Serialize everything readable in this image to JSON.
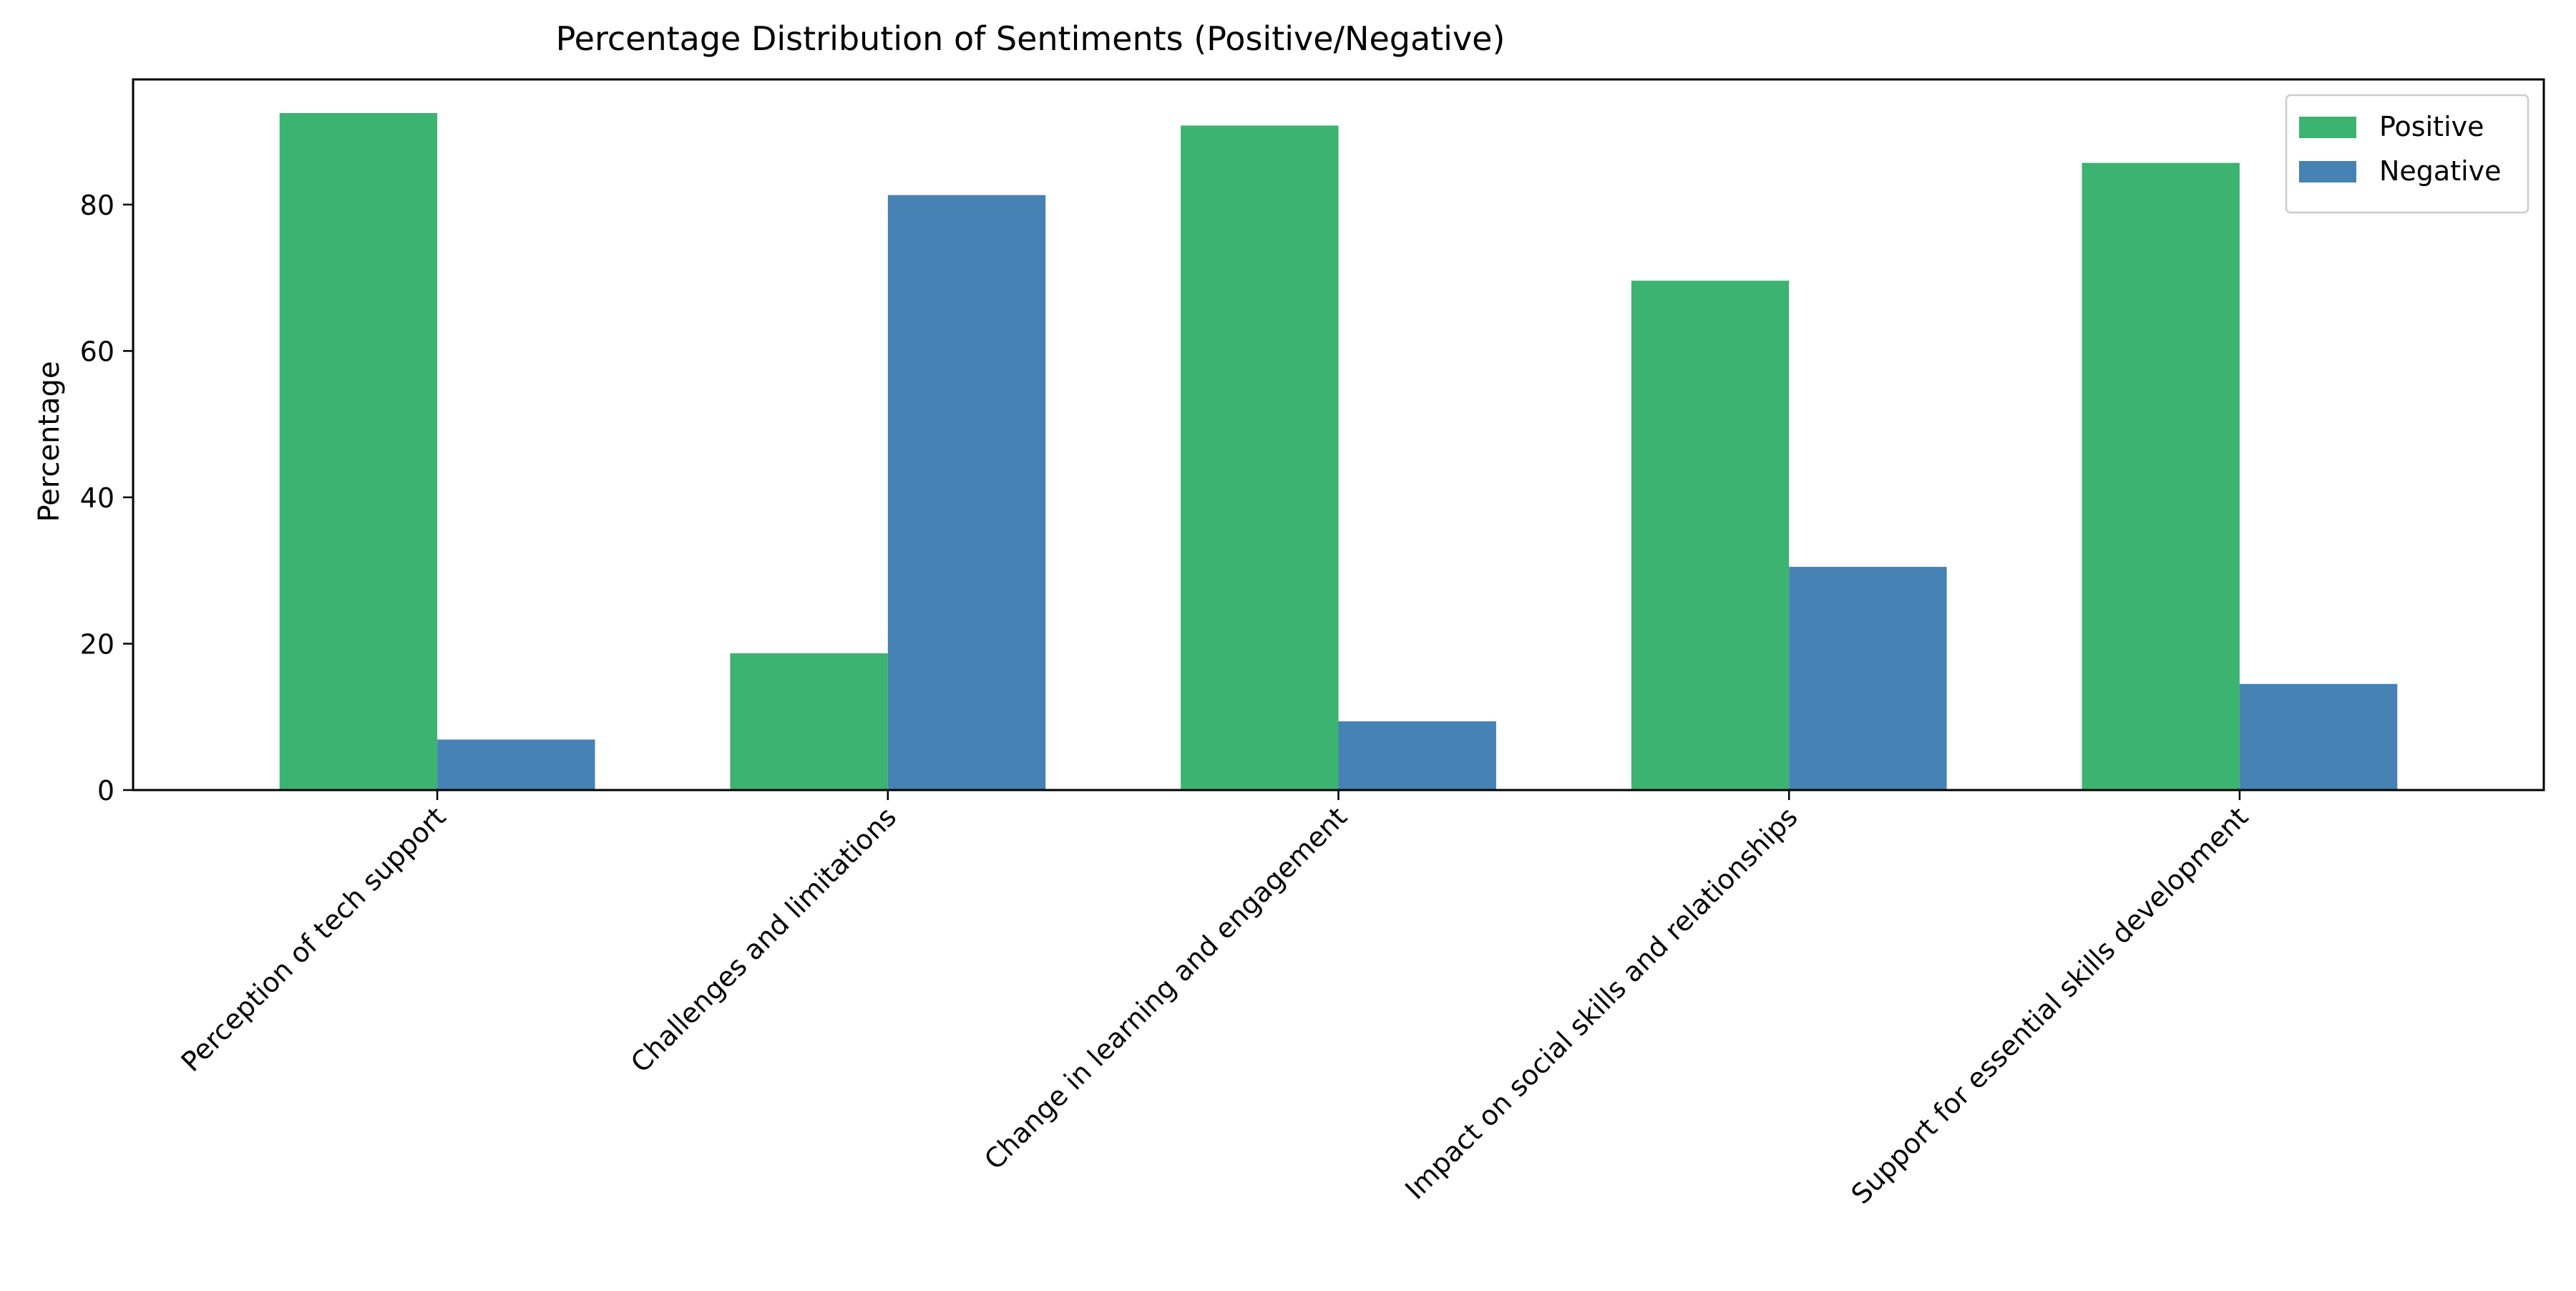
{
  "chart_data": {
    "type": "bar",
    "title": "Percentage Distribution of Sentiments (Positive/Negative)",
    "xlabel": "",
    "ylabel": "Percentage",
    "categories": [
      "Perception of tech support",
      "Challenges and limitations",
      "Change in learning and engagement",
      "Impact on social skills and relationships",
      "Support for essential skills development"
    ],
    "series": [
      {
        "name": "Positive",
        "color": "#3cb371",
        "values": [
          92.5,
          18.7,
          90.8,
          69.6,
          85.7
        ]
      },
      {
        "name": "Negative",
        "color": "#4682b4",
        "values": [
          6.9,
          81.3,
          9.4,
          30.5,
          14.5
        ]
      }
    ],
    "ylim": [
      0,
      97.1
    ],
    "yticks": [
      0,
      20,
      40,
      60,
      80
    ],
    "grid": false,
    "legend": "top-right"
  }
}
